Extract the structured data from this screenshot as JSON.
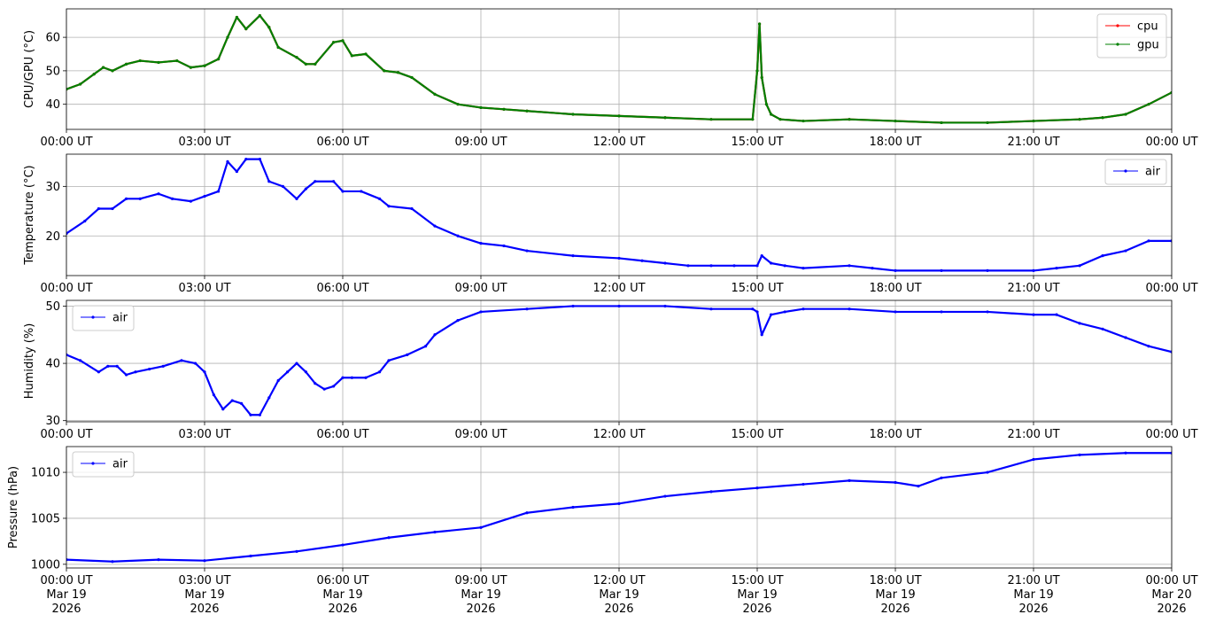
{
  "chart_data": [
    {
      "type": "line",
      "ylabel": "CPU/GPU (°C)",
      "ylim": [
        32.5,
        68.5
      ],
      "yticks": [
        40,
        50,
        60
      ],
      "xlim": [
        0,
        24
      ],
      "xtick_labels": [
        "00:00 UT",
        "03:00 UT",
        "06:00 UT",
        "09:00 UT",
        "12:00 UT",
        "15:00 UT",
        "18:00 UT",
        "21:00 UT",
        "00:00 UT"
      ],
      "grid": true,
      "legend_position": "upper-right",
      "series": [
        {
          "name": "cpu",
          "color": "#ff0000",
          "x": [
            0,
            0.3,
            0.6,
            0.8,
            1.0,
            1.3,
            1.6,
            2.0,
            2.4,
            2.7,
            3.0,
            3.3,
            3.5,
            3.7,
            3.9,
            4.2,
            4.4,
            4.6,
            5.0,
            5.2,
            5.4,
            5.8,
            6.0,
            6.2,
            6.5,
            6.9,
            7.2,
            7.5,
            8.0,
            8.5,
            9.0,
            9.5,
            10,
            11,
            12,
            13,
            14,
            14.9,
            15.0,
            15.05,
            15.1,
            15.2,
            15.3,
            15.5,
            16,
            17,
            18,
            19,
            20,
            21,
            22,
            22.5,
            23,
            23.5,
            24
          ],
          "y": [
            44.5,
            46,
            49,
            51,
            50,
            52,
            53,
            52.5,
            53,
            51,
            51.5,
            53.5,
            60,
            66,
            62.5,
            66.5,
            63,
            57,
            54,
            52,
            52,
            58.5,
            59,
            54.5,
            55,
            50,
            49.5,
            48,
            43,
            40,
            39,
            38.5,
            38,
            37,
            36.5,
            36,
            35.5,
            35.5,
            50,
            64,
            48,
            40,
            37,
            35.5,
            35,
            35.5,
            35,
            34.5,
            34.5,
            35,
            35.5,
            36,
            37,
            40,
            43.5
          ]
        },
        {
          "name": "gpu",
          "color": "#008000",
          "x": [
            0,
            0.3,
            0.6,
            0.8,
            1.0,
            1.3,
            1.6,
            2.0,
            2.4,
            2.7,
            3.0,
            3.3,
            3.5,
            3.7,
            3.9,
            4.2,
            4.4,
            4.6,
            5.0,
            5.2,
            5.4,
            5.8,
            6.0,
            6.2,
            6.5,
            6.9,
            7.2,
            7.5,
            8.0,
            8.5,
            9.0,
            9.5,
            10,
            11,
            12,
            13,
            14,
            14.9,
            15.0,
            15.05,
            15.1,
            15.2,
            15.3,
            15.5,
            16,
            17,
            18,
            19,
            20,
            21,
            22,
            22.5,
            23,
            23.5,
            24
          ],
          "y": [
            44.5,
            46,
            49,
            51,
            50,
            52,
            53,
            52.5,
            53,
            51,
            51.5,
            53.5,
            60,
            66,
            62.5,
            66.5,
            63,
            57,
            54,
            52,
            52,
            58.5,
            59,
            54.5,
            55,
            50,
            49.5,
            48,
            43,
            40,
            39,
            38.5,
            38,
            37,
            36.5,
            36,
            35.5,
            35.5,
            50,
            64,
            48,
            40,
            37,
            35.5,
            35,
            35.5,
            35,
            34.5,
            34.5,
            35,
            35.5,
            36,
            37,
            40,
            43.5
          ]
        }
      ]
    },
    {
      "type": "line",
      "ylabel": "Temperature (°C)",
      "ylim": [
        12,
        36.5
      ],
      "yticks": [
        20,
        30
      ],
      "xlim": [
        0,
        24
      ],
      "xtick_labels": [
        "00:00 UT",
        "03:00 UT",
        "06:00 UT",
        "09:00 UT",
        "12:00 UT",
        "15:00 UT",
        "18:00 UT",
        "21:00 UT",
        "00:00 UT"
      ],
      "grid": true,
      "legend_position": "upper-right",
      "series": [
        {
          "name": "air",
          "color": "#0000ff",
          "x": [
            0,
            0.4,
            0.7,
            1.0,
            1.3,
            1.6,
            2.0,
            2.3,
            2.7,
            3.0,
            3.3,
            3.5,
            3.7,
            3.9,
            4.2,
            4.4,
            4.7,
            5.0,
            5.2,
            5.4,
            5.8,
            6.0,
            6.4,
            6.8,
            7.0,
            7.5,
            8.0,
            8.5,
            9.0,
            9.5,
            10,
            11,
            12,
            12.5,
            13,
            13.5,
            14,
            14.5,
            15.0,
            15.1,
            15.3,
            15.6,
            16,
            17,
            17.5,
            18,
            19,
            20,
            21,
            21.5,
            22,
            22.5,
            23,
            23.5,
            24
          ],
          "y": [
            20.5,
            23,
            25.5,
            25.5,
            27.5,
            27.5,
            28.5,
            27.5,
            27,
            28,
            29,
            35,
            33,
            35.5,
            35.5,
            31,
            30,
            27.5,
            29.5,
            31,
            31,
            29,
            29,
            27.5,
            26,
            25.5,
            22,
            20,
            18.5,
            18,
            17,
            16,
            15.5,
            15,
            14.5,
            14,
            14,
            14,
            14,
            16,
            14.5,
            14,
            13.5,
            14,
            13.5,
            13,
            13,
            13,
            13,
            13.5,
            14,
            16,
            17,
            19,
            19
          ]
        }
      ]
    },
    {
      "type": "line",
      "ylabel": "Humidity (%)",
      "ylim": [
        29.8,
        51
      ],
      "yticks": [
        30,
        40,
        50
      ],
      "xlim": [
        0,
        24
      ],
      "xtick_labels": [
        "00:00 UT",
        "03:00 UT",
        "06:00 UT",
        "09:00 UT",
        "12:00 UT",
        "15:00 UT",
        "18:00 UT",
        "21:00 UT",
        "00:00 UT"
      ],
      "grid": true,
      "legend_position": "upper-left",
      "series": [
        {
          "name": "air",
          "color": "#0000ff",
          "x": [
            0,
            0.3,
            0.7,
            0.9,
            1.1,
            1.3,
            1.5,
            1.8,
            2.1,
            2.5,
            2.8,
            3.0,
            3.2,
            3.4,
            3.6,
            3.8,
            4.0,
            4.2,
            4.4,
            4.6,
            4.8,
            5.0,
            5.2,
            5.4,
            5.6,
            5.8,
            6.0,
            6.2,
            6.5,
            6.8,
            7.0,
            7.4,
            7.8,
            8.0,
            8.5,
            9.0,
            10,
            11,
            12,
            13,
            14,
            14.9,
            15.0,
            15.1,
            15.3,
            15.6,
            16,
            17,
            18,
            19,
            20,
            21,
            21.5,
            22,
            22.5,
            23,
            23.5,
            24
          ],
          "y": [
            41.5,
            40.5,
            38.5,
            39.5,
            39.5,
            38,
            38.5,
            39,
            39.5,
            40.5,
            40,
            38.5,
            34.5,
            32,
            33.5,
            33,
            31,
            31,
            34,
            37,
            38.5,
            40,
            38.5,
            36.5,
            35.5,
            36,
            37.5,
            37.5,
            37.5,
            38.5,
            40.5,
            41.5,
            43,
            45,
            47.5,
            49,
            49.5,
            50,
            50,
            50,
            49.5,
            49.5,
            49,
            45,
            48.5,
            49,
            49.5,
            49.5,
            49,
            49,
            49,
            48.5,
            48.5,
            47,
            46,
            44.5,
            43,
            42
          ]
        }
      ]
    },
    {
      "type": "line",
      "ylabel": "Pressure (hPa)",
      "ylim": [
        999.6,
        1012.8
      ],
      "yticks": [
        1000,
        1005,
        1010
      ],
      "xlim": [
        0,
        24
      ],
      "xtick_labels": [
        "00:00 UT\nMar 19\n2026",
        "03:00 UT\nMar 19\n2026",
        "06:00 UT\nMar 19\n2026",
        "09:00 UT\nMar 19\n2026",
        "12:00 UT\nMar 19\n2026",
        "15:00 UT\nMar 19\n2026",
        "18:00 UT\nMar 19\n2026",
        "21:00 UT\nMar 19\n2026",
        "00:00 UT\nMar 20\n2026"
      ],
      "grid": true,
      "legend_position": "upper-left",
      "series": [
        {
          "name": "air",
          "color": "#0000ff",
          "x": [
            0,
            1,
            2,
            3,
            4,
            5,
            6,
            7,
            8,
            9,
            10,
            11,
            12,
            13,
            14,
            15,
            16,
            17,
            18,
            18.5,
            19,
            20,
            21,
            22,
            23,
            24
          ],
          "y": [
            1000.5,
            1000.3,
            1000.5,
            1000.4,
            1000.9,
            1001.4,
            1002.1,
            1002.9,
            1003.5,
            1004.0,
            1005.6,
            1006.2,
            1006.6,
            1007.4,
            1007.9,
            1008.3,
            1008.7,
            1009.1,
            1008.9,
            1008.5,
            1009.4,
            1010.0,
            1011.4,
            1011.9,
            1012.1,
            1012.1
          ]
        }
      ]
    }
  ]
}
